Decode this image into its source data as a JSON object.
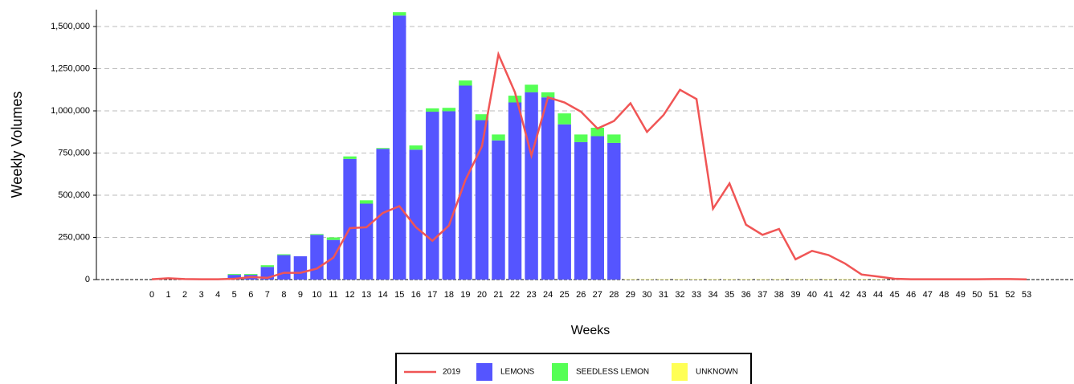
{
  "chart_data": {
    "type": "bar",
    "stacked": true,
    "x_label": "Weeks",
    "y_label": "Weekly Volumes",
    "categories": [
      "0",
      "1",
      "2",
      "3",
      "4",
      "5",
      "6",
      "7",
      "8",
      "9",
      "10",
      "11",
      "12",
      "13",
      "14",
      "15",
      "16",
      "17",
      "18",
      "19",
      "20",
      "21",
      "22",
      "23",
      "24",
      "25",
      "26",
      "27",
      "28",
      "29",
      "30",
      "31",
      "32",
      "33",
      "34",
      "35",
      "36",
      "37",
      "38",
      "39",
      "40",
      "41",
      "42",
      "43",
      "44",
      "45",
      "46",
      "47",
      "48",
      "49",
      "50",
      "51",
      "52",
      "53"
    ],
    "ylim": [
      0,
      1600000
    ],
    "yticks": [
      0,
      {
        "value": 250000,
        "label": "250,000"
      },
      {
        "value": 500000,
        "label": "500,000"
      },
      {
        "value": 750000,
        "label": "750,000"
      },
      {
        "value": 1000000,
        "label": "1,000,000"
      },
      {
        "value": 1250000,
        "label": "1,250,000"
      },
      {
        "value": 1500000,
        "label": "1,500,000"
      }
    ],
    "grid": true,
    "legend": "bottom",
    "series": [
      {
        "name": "2019",
        "type": "line",
        "color": "#f05555",
        "values": [
          2000,
          8000,
          3000,
          2000,
          2000,
          5000,
          15000,
          10000,
          40000,
          40000,
          65000,
          130000,
          305000,
          310000,
          395000,
          435000,
          310000,
          230000,
          320000,
          590000,
          790000,
          1335000,
          1110000,
          735000,
          1080000,
          1050000,
          995000,
          895000,
          940000,
          1045000,
          875000,
          975000,
          1125000,
          1070000,
          420000,
          570000,
          325000,
          265000,
          300000,
          120000,
          170000,
          145000,
          95000,
          30000,
          18000,
          5000,
          2000,
          2000,
          2000,
          2000,
          2000,
          3000,
          3000,
          1000
        ]
      },
      {
        "name": "LEMONS",
        "type": "bar",
        "color": "#5555ff",
        "values": [
          0,
          0,
          0,
          0,
          0,
          28000,
          28000,
          75000,
          145000,
          138000,
          265000,
          235000,
          715000,
          450000,
          775000,
          1565000,
          770000,
          995000,
          998000,
          1150000,
          945000,
          825000,
          1050000,
          1110000,
          1080000,
          920000,
          815000,
          850000,
          810000,
          0,
          0,
          0,
          0,
          0,
          0,
          0,
          0,
          0,
          0,
          0,
          0,
          0,
          0,
          0,
          0,
          0,
          0,
          0,
          0,
          0,
          0,
          0,
          0,
          0
        ]
      },
      {
        "name": "SEEDLESS LEMON",
        "type": "bar",
        "color": "#55ff55",
        "values": [
          0,
          0,
          0,
          0,
          0,
          5000,
          5000,
          10000,
          5000,
          0,
          5000,
          15000,
          15000,
          20000,
          5000,
          20000,
          25000,
          20000,
          20000,
          30000,
          35000,
          35000,
          40000,
          45000,
          30000,
          65000,
          45000,
          50000,
          50000,
          0,
          0,
          0,
          0,
          0,
          0,
          0,
          0,
          0,
          0,
          0,
          0,
          0,
          0,
          0,
          0,
          0,
          0,
          0,
          0,
          0,
          0,
          0,
          0,
          0
        ]
      },
      {
        "name": "UNKNOWN",
        "type": "bar",
        "color": "#ffff55",
        "values": [
          0,
          0,
          0,
          0,
          0,
          0,
          0,
          0,
          0,
          0,
          0,
          0,
          0,
          0,
          0,
          0,
          0,
          0,
          0,
          0,
          0,
          0,
          0,
          0,
          0,
          0,
          0,
          0,
          0,
          2000,
          2000,
          2000,
          2000,
          2000,
          2000,
          2000,
          2000,
          2000,
          2000,
          2000,
          2000,
          2000,
          2000,
          2000,
          2000,
          0,
          0,
          0,
          0,
          0,
          0,
          0,
          0,
          0
        ]
      }
    ]
  }
}
